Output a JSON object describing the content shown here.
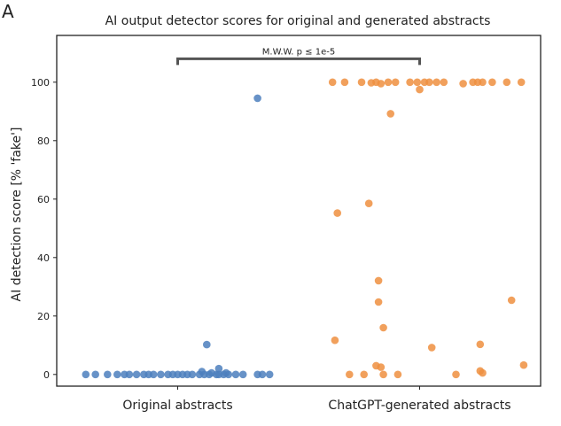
{
  "panel_label": "A",
  "chart_data": {
    "type": "scatter",
    "title": "AI output detector scores for original and generated abstracts",
    "xlabel": "",
    "ylabel": "AI detection score [% 'fake']",
    "ylim": [
      -4,
      116
    ],
    "yticks": [
      0,
      20,
      40,
      60,
      80,
      100
    ],
    "categories": [
      "Original abstracts",
      "ChatGPT-generated abstracts"
    ],
    "grid": false,
    "series": [
      {
        "color": "#4c7fbd",
        "points": [
          [
            -0.38,
            0
          ],
          [
            -0.34,
            0
          ],
          [
            -0.29,
            0
          ],
          [
            -0.25,
            0
          ],
          [
            -0.22,
            0
          ],
          [
            -0.2,
            0
          ],
          [
            -0.17,
            0
          ],
          [
            -0.14,
            0
          ],
          [
            -0.12,
            0
          ],
          [
            -0.1,
            0
          ],
          [
            -0.07,
            0
          ],
          [
            -0.04,
            0
          ],
          [
            -0.02,
            0
          ],
          [
            0.0,
            0
          ],
          [
            0.02,
            0
          ],
          [
            0.04,
            0
          ],
          [
            0.06,
            0
          ],
          [
            0.09,
            0
          ],
          [
            0.11,
            0
          ],
          [
            0.13,
            0
          ],
          [
            0.16,
            0
          ],
          [
            0.17,
            0
          ],
          [
            0.19,
            0
          ],
          [
            0.21,
            0
          ],
          [
            0.24,
            0
          ],
          [
            0.27,
            0
          ],
          [
            0.33,
            0
          ],
          [
            0.35,
            0
          ],
          [
            0.38,
            0
          ],
          [
            0.1,
            1
          ],
          [
            0.14,
            0.5
          ],
          [
            0.2,
            0.5
          ],
          [
            0.17,
            2
          ],
          [
            0.12,
            10.2
          ],
          [
            0.33,
            94.5
          ]
        ]
      },
      {
        "color": "#ef8f3f",
        "points": [
          [
            0.64,
            100
          ],
          [
            0.69,
            100
          ],
          [
            0.76,
            100
          ],
          [
            0.8,
            99.8
          ],
          [
            0.82,
            100
          ],
          [
            0.84,
            99.5
          ],
          [
            0.87,
            100
          ],
          [
            0.9,
            100
          ],
          [
            0.96,
            100
          ],
          [
            0.99,
            100
          ],
          [
            1.02,
            100
          ],
          [
            1.04,
            100
          ],
          [
            1.07,
            100
          ],
          [
            1.1,
            100
          ],
          [
            1.18,
            99.5
          ],
          [
            1.22,
            100
          ],
          [
            1.24,
            100
          ],
          [
            1.26,
            100
          ],
          [
            1.3,
            100
          ],
          [
            1.36,
            100
          ],
          [
            1.42,
            100
          ],
          [
            1.0,
            97.5
          ],
          [
            0.88,
            89.2
          ],
          [
            0.66,
            55.2
          ],
          [
            0.79,
            58.5
          ],
          [
            0.83,
            32.1
          ],
          [
            0.83,
            24.8
          ],
          [
            0.85,
            16
          ],
          [
            0.65,
            11.7
          ],
          [
            1.05,
            9.2
          ],
          [
            1.25,
            10.3
          ],
          [
            1.38,
            25.4
          ],
          [
            0.82,
            3
          ],
          [
            0.84,
            2.5
          ],
          [
            0.71,
            0
          ],
          [
            0.77,
            0
          ],
          [
            0.85,
            0
          ],
          [
            0.91,
            0
          ],
          [
            1.15,
            0
          ],
          [
            1.25,
            1.2
          ],
          [
            1.26,
            0.5
          ],
          [
            1.43,
            3.2
          ]
        ]
      }
    ],
    "annotations": [
      {
        "text": "M.W.W. p ≤ 1e-5",
        "x_from": 0,
        "x_to": 1,
        "y": 108
      }
    ]
  }
}
